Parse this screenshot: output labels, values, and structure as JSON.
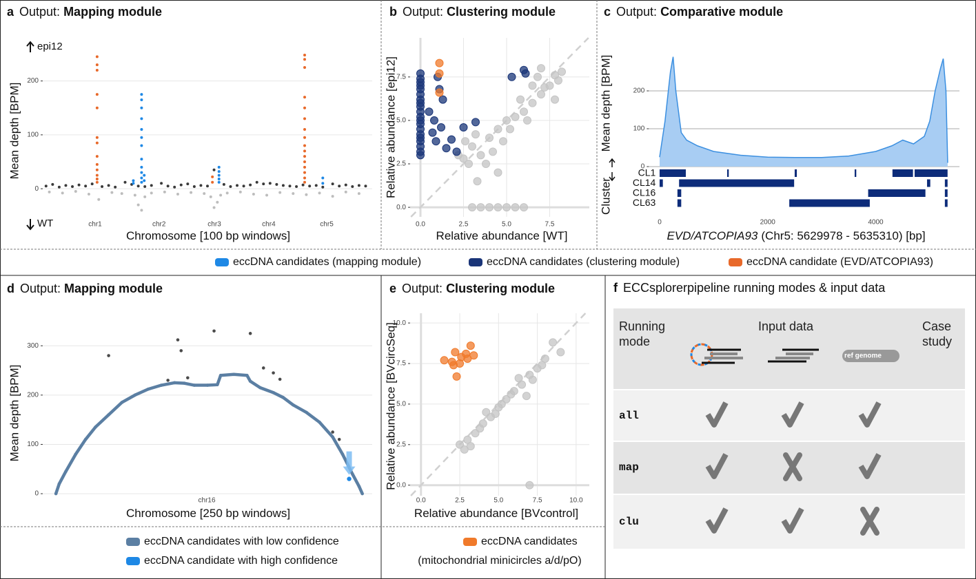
{
  "chart_data": [
    {
      "type": "scatter",
      "panel_label": "a",
      "title_lead": "Output:",
      "title": "Mapping module",
      "xlabel": "Chromosome [100 bp windows]",
      "ylabel": "Mean depth [BPM]",
      "upper_label": "epi12",
      "lower_label": "WT",
      "xlim": [
        0,
        100
      ],
      "ylim": [
        -65,
        280
      ],
      "grid": "y",
      "xticks": [
        {
          "value": 15.9,
          "label": "chr1"
        },
        {
          "value": 35.3,
          "label": "chr2"
        },
        {
          "value": 52.1,
          "label": "chr3"
        },
        {
          "value": 68.6,
          "label": "chr4"
        },
        {
          "value": 86.2,
          "label": "chr5"
        }
      ],
      "yticks": [
        0,
        100,
        200
      ],
      "series": [
        {
          "color": "#3a3a3a",
          "x": [
            1,
            3,
            5,
            7,
            9,
            11,
            13,
            15,
            18,
            20,
            22,
            25,
            27,
            29,
            31,
            33,
            36,
            38,
            40,
            42,
            44,
            46,
            48,
            50,
            52,
            55,
            57,
            59,
            61,
            63,
            65,
            67,
            69,
            71,
            73,
            75,
            77,
            79,
            81,
            83,
            85,
            88,
            90,
            92,
            94,
            96,
            98
          ],
          "values": [
            5,
            8,
            3,
            6,
            4,
            7,
            5,
            9,
            4,
            6,
            3,
            12,
            8,
            5,
            4,
            6,
            10,
            5,
            3,
            7,
            9,
            4,
            6,
            5,
            35,
            8,
            4,
            6,
            5,
            7,
            12,
            9,
            10,
            8,
            6,
            5,
            4,
            7,
            5,
            6,
            3,
            9,
            5,
            7,
            4,
            6,
            5
          ]
        },
        {
          "color": "#bdbdbd",
          "x": [
            2,
            6,
            10,
            14,
            17,
            21,
            24,
            28,
            29,
            30,
            31,
            33,
            37,
            41,
            45,
            49,
            51,
            52,
            53,
            54,
            56,
            60,
            64,
            68,
            72,
            76,
            80,
            84,
            88,
            92,
            96
          ],
          "values": [
            -6,
            -8,
            -5,
            -10,
            -20,
            -7,
            -9,
            -12,
            -30,
            -40,
            -15,
            -8,
            -6,
            -10,
            -7,
            -9,
            -15,
            -35,
            -25,
            -12,
            -8,
            -6,
            -10,
            -12,
            -7,
            -9,
            -11,
            -8,
            -14,
            -6,
            -9
          ]
        },
        {
          "name": "eccDNA candidates (mapping module)",
          "color": "#1e88e5",
          "x": [
            27.5,
            27.5,
            30,
            30,
            30,
            30,
            30,
            30,
            30,
            30,
            30,
            30,
            30,
            30,
            30.8,
            30.8,
            53.5,
            53.5,
            53.5,
            53.5,
            53.5,
            85,
            85
          ],
          "values": [
            10,
            15,
            175,
            165,
            150,
            130,
            110,
            95,
            80,
            55,
            40,
            30,
            20,
            12,
            25,
            15,
            40,
            32,
            25,
            18,
            12,
            20,
            10
          ]
        },
        {
          "name": "eccDNA candidate (EVD/ATCOPIA93)",
          "color": "#e8692a",
          "x": [
            16.5,
            16.5,
            16.5,
            16.5,
            16.5,
            16.5,
            16.5,
            16.5,
            16.5,
            16.5,
            16.5,
            16.5,
            16.5,
            51.5,
            51.5,
            79.5,
            79.5,
            79.5,
            79.5,
            79.5,
            79.5,
            79.5,
            79.5,
            79.5,
            79.5,
            79.5,
            79.5,
            79.5,
            79.5,
            79.5,
            79.5
          ],
          "values": [
            245,
            230,
            220,
            175,
            150,
            95,
            85,
            60,
            45,
            35,
            25,
            18,
            12,
            22,
            12,
            248,
            240,
            225,
            170,
            150,
            130,
            110,
            95,
            80,
            70,
            60,
            50,
            40,
            30,
            20,
            12
          ]
        }
      ]
    },
    {
      "type": "scatter",
      "panel_label": "b",
      "title_lead": "Output:",
      "title": "Clustering module",
      "xlabel": "Relative abundance [WT]",
      "ylabel": "Relative abundance [epi12]",
      "xlim": [
        -0.6,
        9.8
      ],
      "ylim": [
        -0.55,
        9.75
      ],
      "grid": "both",
      "diagonal": true,
      "xticks": [
        {
          "value": 0,
          "label": "0.0"
        },
        2.5,
        {
          "value": 5,
          "label": "5.0"
        },
        7.5
      ],
      "yticks": [
        {
          "value": 0,
          "label": "0.0"
        },
        2.5,
        {
          "value": 5,
          "label": "5.0"
        },
        7.5
      ],
      "series": [
        {
          "color": "#c4c4c4",
          "x": [
            3,
            3.5,
            2.8,
            4,
            4.5,
            5,
            5.5,
            6,
            6.5,
            7,
            7.5,
            8,
            6.8,
            7.2,
            5.8,
            4.8,
            4.2,
            3.2,
            2.6,
            2.2,
            3.8,
            5.2,
            6.2,
            7.8,
            8.2,
            7.8,
            3,
            3.5,
            4,
            4.5,
            5,
            5.5,
            6,
            3.3,
            4.5,
            2.5,
            7,
            6.5
          ],
          "values": [
            3.5,
            3,
            2.5,
            4,
            4.5,
            5,
            5.2,
            5.5,
            6,
            6.5,
            7,
            7.3,
            7.5,
            6.9,
            6.2,
            3.8,
            3.2,
            4.2,
            3.8,
            3,
            2.5,
            4.5,
            5,
            6.2,
            7.8,
            7.6,
            0,
            0,
            0,
            0,
            0,
            0,
            0,
            1.5,
            2,
            2.8,
            8,
            7
          ]
        },
        {
          "name": "eccDNA candidates (clustering module)",
          "color": "#1a3578",
          "x": [
            0,
            0,
            0,
            0,
            0,
            0,
            0,
            0,
            0,
            0,
            0,
            0,
            0,
            0,
            0,
            0,
            0,
            0,
            0,
            0,
            0.5,
            0.7,
            0.9,
            1.2,
            1.5,
            1.8,
            2.1,
            1.3,
            1.1,
            2.5,
            3.2,
            6,
            6.1,
            5.3,
            1,
            0.8
          ],
          "values": [
            7.7,
            7.4,
            7.2,
            7,
            6.8,
            6.5,
            6.2,
            6,
            5.8,
            5.5,
            5.2,
            5,
            4.8,
            4.5,
            4.2,
            4,
            3.8,
            3.5,
            3.2,
            3,
            5.5,
            4.3,
            3.8,
            4.6,
            3.4,
            3.9,
            3.2,
            6.2,
            6.8,
            4.6,
            4.9,
            7.9,
            7.7,
            7.5,
            7.5,
            5
          ]
        },
        {
          "color": "#f07a2b",
          "x": [
            1.1,
            1.1,
            1.1
          ],
          "values": [
            8.3,
            7.7,
            6.6
          ]
        }
      ]
    },
    {
      "type": "area",
      "panel_label": "c",
      "title_lead": "Output:",
      "title": "Comparative module",
      "xlabel_italic": "EVD/ATCOPIA93",
      "xlabel": "(Chr5: 5629978 - 5635310) [bp]",
      "ylabel": "Mean depth [BPM]",
      "cluster_label": "Cluster",
      "xlim": [
        -200,
        5550
      ],
      "ylim": [
        0,
        340
      ],
      "grid": "y",
      "xticks": [
        0,
        2000,
        4000
      ],
      "yticks": [
        0,
        100,
        200
      ],
      "color": "#3b8fe0",
      "fill": "#a8cdf3",
      "x": [
        0,
        100,
        200,
        250,
        300,
        400,
        500,
        700,
        1000,
        1500,
        2000,
        2500,
        3000,
        3500,
        4000,
        4300,
        4500,
        4700,
        4900,
        5000,
        5100,
        5200,
        5250,
        5300,
        5332
      ],
      "values": [
        25,
        120,
        250,
        290,
        200,
        90,
        70,
        55,
        40,
        30,
        25,
        24,
        24,
        28,
        40,
        55,
        70,
        60,
        80,
        120,
        200,
        260,
        285,
        200,
        10
      ],
      "cluster_color": "#0d2c7a",
      "clusters": [
        {
          "name": "CL1",
          "segments": [
            [
              0,
              485
            ],
            [
              1250,
              1280
            ],
            [
              2500,
              2540
            ],
            [
              3610,
              3640
            ],
            [
              4310,
              4690
            ],
            [
              4720,
              5330
            ]
          ]
        },
        {
          "name": "CL14",
          "segments": [
            [
              0,
              60
            ],
            [
              360,
              2490
            ],
            [
              4950,
              5010
            ],
            [
              5280,
              5330
            ]
          ]
        },
        {
          "name": "CL16",
          "segments": [
            [
              330,
              400
            ],
            [
              3860,
              4920
            ],
            [
              5280,
              5330
            ]
          ]
        },
        {
          "name": "CL63",
          "segments": [
            [
              330,
              400
            ],
            [
              2400,
              3890
            ],
            [
              5280,
              5330
            ]
          ]
        }
      ]
    },
    {
      "type": "line",
      "panel_label": "d",
      "title_lead": "Output:",
      "title": "Mapping module",
      "xlabel": "Chromosome [250 bp windows]",
      "ylabel": "Mean depth [BPM]",
      "xlim": [
        0,
        100
      ],
      "ylim": [
        -25,
        345
      ],
      "grid": "y",
      "xticks": [
        {
          "value": 49.8,
          "label": "chr16"
        }
      ],
      "yticks": [
        0,
        100,
        200,
        300
      ],
      "series": [
        {
          "name": "eccDNA candidates with low confidence",
          "color": "#5b7fa3",
          "mode": "lines+markers",
          "x": [
            4,
            5,
            7,
            10,
            13,
            16,
            20,
            24,
            28,
            32,
            36,
            40,
            43,
            46,
            50,
            53,
            54,
            58,
            62,
            63,
            66,
            70,
            73,
            76,
            80,
            84,
            88,
            91,
            94,
            96,
            97
          ],
          "values": [
            0,
            20,
            45,
            80,
            110,
            135,
            160,
            185,
            200,
            212,
            220,
            225,
            224,
            220,
            220,
            221,
            240,
            242,
            240,
            228,
            215,
            205,
            195,
            180,
            165,
            145,
            115,
            80,
            40,
            15,
            0
          ]
        },
        {
          "color": "#4a4a4a",
          "mode": "markers",
          "x": [
            20,
            41,
            42,
            52,
            63,
            67,
            70,
            72,
            90,
            88,
            38,
            44
          ],
          "values": [
            280,
            312,
            290,
            330,
            325,
            255,
            245,
            232,
            110,
            125,
            230,
            235
          ]
        },
        {
          "name": "eccDNA candidate with high confidence",
          "color": "#1e88e5",
          "mode": "markers",
          "x": [
            93
          ],
          "values": [
            30
          ]
        }
      ]
    },
    {
      "type": "scatter",
      "panel_label": "e",
      "title_lead": "Output:",
      "title": "Clustering module",
      "xlabel": "Relative abundance [BVcontrol]",
      "ylabel": "Relative abundance [BVcircSeq]",
      "legend_note": "(mitochondrial minicircles a/d/pO)",
      "xlim": [
        -0.7,
        10.85
      ],
      "ylim": [
        -0.65,
        10.6
      ],
      "grid": "both",
      "diagonal": true,
      "xticks": [
        {
          "value": 0,
          "label": "0.0"
        },
        2.5,
        {
          "value": 5,
          "label": "5.0"
        },
        7.5,
        {
          "value": 10,
          "label": "10.0"
        }
      ],
      "yticks": [
        {
          "value": 0,
          "label": "0.0"
        },
        2.5,
        {
          "value": 5,
          "label": "5.0"
        },
        7.5,
        {
          "value": 10,
          "label": "10.0"
        }
      ],
      "series": [
        {
          "color": "#c4c4c4",
          "x": [
            2.5,
            3,
            3.5,
            4,
            4.5,
            5,
            5.5,
            6,
            6.5,
            7,
            7.5,
            8,
            8.5,
            9,
            3.2,
            3.8,
            4.2,
            5.2,
            5.8,
            6.8,
            7.2,
            7.8,
            2.8,
            4.8,
            6.3,
            7
          ],
          "values": [
            2.5,
            2.8,
            3.2,
            3.8,
            4.2,
            4.8,
            5.3,
            5.8,
            6.2,
            6.8,
            7.2,
            7.8,
            8.8,
            8.2,
            2.4,
            3.5,
            4.5,
            5,
            5.6,
            5.5,
            6.5,
            7.4,
            2.2,
            4.4,
            6.6,
            0
          ]
        },
        {
          "name": "eccDNA candidates",
          "color": "#f07a2b",
          "x": [
            1.5,
            2,
            2.2,
            2.5,
            2.6,
            2.3,
            3,
            3.2,
            3.4,
            2.9,
            2.1
          ],
          "values": [
            7.7,
            7.6,
            8.2,
            7.5,
            7.9,
            6.7,
            7.8,
            8.6,
            8,
            8.1,
            7.4
          ]
        }
      ]
    }
  ],
  "table": {
    "panel_label": "f",
    "title": "ECCsplorerpipeline running modes & input data",
    "headers": [
      "Running mode",
      "Input data",
      "Case study"
    ],
    "ref_genome_label": "ref genome",
    "rows": [
      {
        "mode": "all",
        "inputs": [
          true,
          true,
          true
        ]
      },
      {
        "mode": "map",
        "inputs": [
          true,
          false,
          true
        ]
      },
      {
        "mode": "clu",
        "inputs": [
          true,
          true,
          false
        ]
      }
    ]
  }
}
